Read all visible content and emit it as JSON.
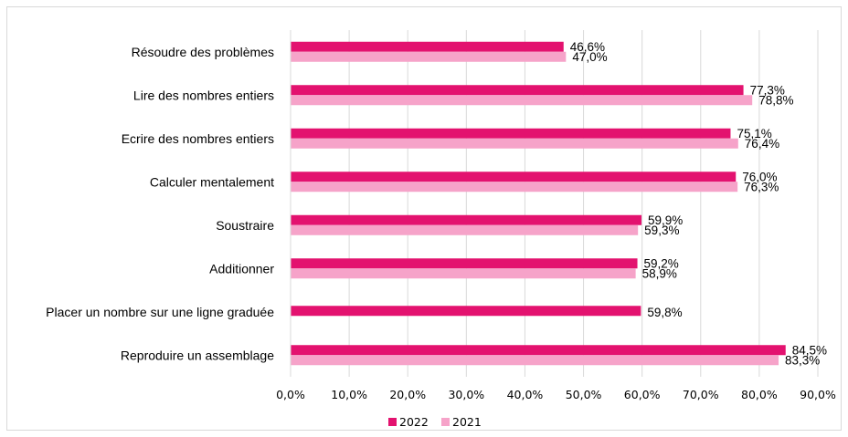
{
  "chart_data": {
    "type": "bar",
    "orientation": "horizontal",
    "categories": [
      "Résoudre des problèmes",
      "Lire des nombres entiers",
      "Ecrire des nombres entiers",
      "Calculer mentalement",
      "Soustraire",
      "Additionner",
      "Placer un nombre sur une ligne graduée",
      "Reproduire un assemblage"
    ],
    "series": [
      {
        "name": "2022",
        "color": "#e3126f",
        "values": [
          46.6,
          77.3,
          75.1,
          76.0,
          59.9,
          59.2,
          59.8,
          84.5
        ],
        "labels": [
          "46,6%",
          "77,3%",
          "75,1%",
          "76,0%",
          "59,9%",
          "59,2%",
          "59,8%",
          "84,5%"
        ]
      },
      {
        "name": "2021",
        "color": "#f6a3c9",
        "values": [
          47.0,
          78.8,
          76.4,
          76.3,
          59.3,
          58.9,
          null,
          83.3
        ],
        "labels": [
          "47,0%",
          "78,8%",
          "76,4%",
          "76,3%",
          "59,3%",
          "58,9%",
          null,
          "83,3%"
        ]
      }
    ],
    "x_ticks": [
      "0,0%",
      "10,0%",
      "20,0%",
      "30,0%",
      "40,0%",
      "50,0%",
      "60,0%",
      "70,0%",
      "80,0%",
      "90,0%"
    ],
    "xlim": [
      0,
      90
    ],
    "grid": true,
    "legend_position": "bottom",
    "title": "",
    "xlabel": "",
    "ylabel": ""
  }
}
